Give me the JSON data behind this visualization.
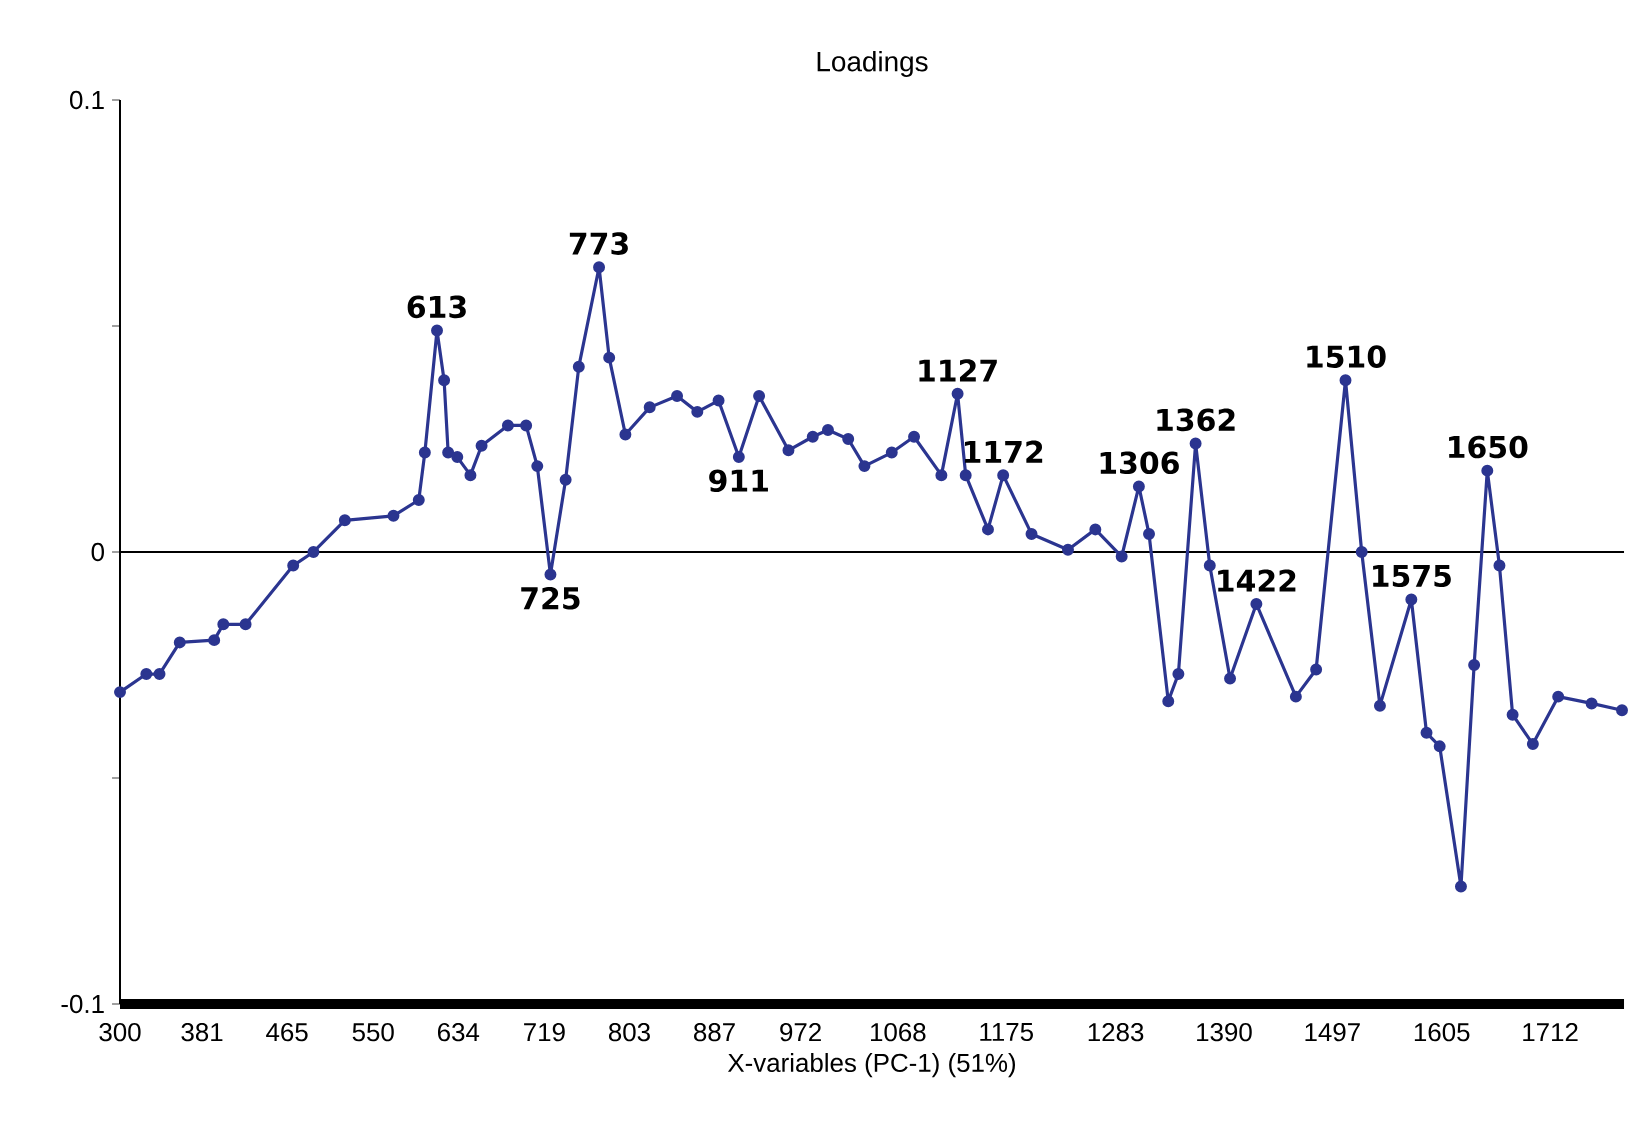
{
  "chart_data": {
    "type": "line",
    "title": "Loadings",
    "xlabel": "X-variables (PC-1) (51%)",
    "xlim": [
      300,
      1785
    ],
    "xticks": [
      300,
      381,
      465,
      550,
      634,
      719,
      803,
      887,
      972,
      1068,
      1175,
      1283,
      1390,
      1497,
      1605,
      1712
    ],
    "ylim": [
      -0.1,
      0.1
    ],
    "yticks": [
      -0.1,
      {
        "value": -0.05,
        "label": null
      },
      0,
      {
        "value": 0.05,
        "label": null
      },
      0.1
    ],
    "marker": "circle",
    "ref_lines": [
      {
        "axis": "y",
        "value": 0
      }
    ],
    "series": [
      {
        "color": "#2b3590",
        "x": [
          300,
          326,
          339,
          359,
          393,
          402,
          424,
          471,
          491,
          522,
          570,
          595,
          601,
          613,
          620,
          624,
          633,
          646,
          657,
          683,
          701,
          712,
          725,
          740,
          753,
          773,
          783,
          799,
          823,
          850,
          870,
          891,
          911,
          931,
          960,
          984,
          999,
          1019,
          1035,
          1062,
          1084,
          1111,
          1127,
          1135,
          1157,
          1172,
          1200,
          1236,
          1263,
          1289,
          1306,
          1316,
          1335,
          1345,
          1362,
          1376,
          1396,
          1422,
          1461,
          1481,
          1510,
          1526,
          1544,
          1575,
          1590,
          1603,
          1624,
          1637,
          1650,
          1662,
          1675,
          1695,
          1720,
          1753,
          1783
        ],
        "values": [
          -0.031,
          -0.027,
          -0.027,
          -0.02,
          -0.0195,
          -0.016,
          -0.016,
          -0.003,
          0.0,
          0.007,
          0.008,
          0.0115,
          0.022,
          0.049,
          0.038,
          0.022,
          0.021,
          0.017,
          0.0235,
          0.028,
          0.028,
          0.019,
          -0.005,
          0.016,
          0.041,
          0.063,
          0.043,
          0.026,
          0.032,
          0.0345,
          0.031,
          0.0335,
          0.021,
          0.0345,
          0.0225,
          0.0255,
          0.027,
          0.025,
          0.019,
          0.022,
          0.0255,
          0.017,
          0.035,
          0.017,
          0.005,
          0.017,
          0.004,
          0.0005,
          0.005,
          -0.001,
          0.0145,
          0.004,
          -0.033,
          -0.027,
          0.024,
          -0.003,
          -0.028,
          -0.0115,
          -0.032,
          -0.026,
          0.038,
          0.0,
          -0.034,
          -0.0105,
          -0.04,
          -0.043,
          -0.074,
          -0.025,
          0.018,
          -0.003,
          -0.036,
          -0.0425,
          -0.032,
          -0.0335,
          -0.035
        ]
      }
    ],
    "annotations": [
      {
        "text": "613",
        "x": 613,
        "y": 0.049
      },
      {
        "text": "725",
        "x": 725,
        "y": -0.005
      },
      {
        "text": "773",
        "x": 773,
        "y": 0.063
      },
      {
        "text": "911",
        "x": 911,
        "y": 0.021
      },
      {
        "text": "1127",
        "x": 1127,
        "y": 0.035
      },
      {
        "text": "1172",
        "x": 1172,
        "y": 0.017
      },
      {
        "text": "1306",
        "x": 1306,
        "y": 0.0145
      },
      {
        "text": "1362",
        "x": 1362,
        "y": 0.024
      },
      {
        "text": "1422",
        "x": 1422,
        "y": -0.0115
      },
      {
        "text": "1510",
        "x": 1510,
        "y": 0.038
      },
      {
        "text": "1575",
        "x": 1575,
        "y": -0.0105
      },
      {
        "text": "1650",
        "x": 1650,
        "y": 0.018
      }
    ]
  }
}
